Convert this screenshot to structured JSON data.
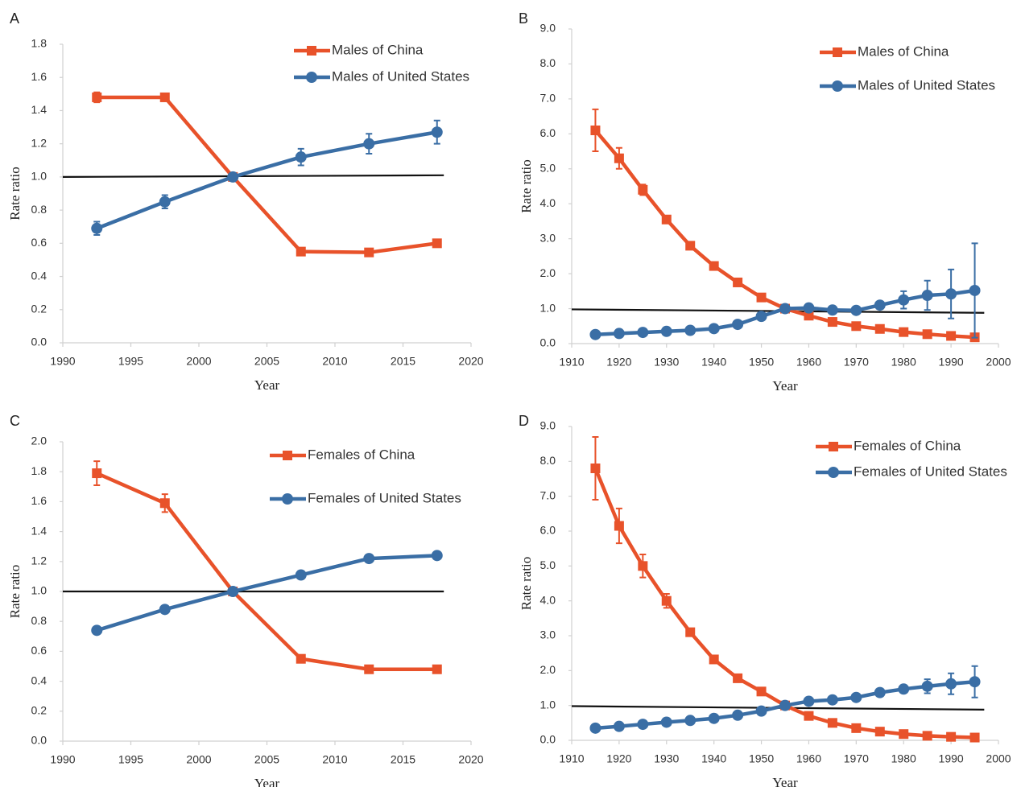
{
  "chart_data": [
    {
      "type": "line",
      "label": "A",
      "xlabel": "Year",
      "ylabel": "Rate ratio",
      "legend": "upper right",
      "grid": false,
      "x": [
        1992.5,
        1997.5,
        2002.5,
        2007.5,
        2012.5,
        2017.5
      ],
      "xlim": [
        1990,
        2020
      ],
      "xticks": [
        1990,
        1995,
        2000,
        2005,
        2010,
        2015,
        2020
      ],
      "ylim": [
        0,
        1.8
      ],
      "yticks": [
        {
          "value": 0,
          "label": "0.0"
        },
        0.2,
        0.4,
        0.6,
        0.8,
        {
          "value": 1,
          "label": "1.0"
        },
        1.2,
        1.4,
        1.6,
        1.8
      ],
      "reference_line": {
        "x": [
          1990,
          2018
        ],
        "y": [
          1.0,
          1.01
        ]
      },
      "series": [
        {
          "name": "Males of China",
          "color": "#e8522a",
          "marker": "square",
          "values": [
            1.48,
            1.48,
            1.0,
            0.55,
            0.545,
            0.6
          ],
          "error": [
            0.03,
            0.02,
            0.01,
            0.01,
            0.01,
            0.01
          ]
        },
        {
          "name": "Males of United States",
          "color": "#3a6ea5",
          "marker": "circle",
          "values": [
            0.69,
            0.85,
            1.0,
            1.12,
            1.2,
            1.27
          ],
          "error": [
            0.04,
            0.04,
            0.01,
            0.05,
            0.06,
            0.07
          ]
        }
      ]
    },
    {
      "type": "line",
      "label": "B",
      "xlabel": "Year",
      "ylabel": "Rate ratio",
      "legend": "upper right",
      "grid": false,
      "x": [
        1915,
        1920,
        1925,
        1930,
        1935,
        1940,
        1945,
        1950,
        1955,
        1960,
        1965,
        1970,
        1975,
        1980,
        1985,
        1990,
        1995
      ],
      "xlim": [
        1910,
        2000
      ],
      "xticks": [
        1910,
        1920,
        1930,
        1940,
        1950,
        1960,
        1970,
        1980,
        1990,
        2000
      ],
      "ylim": [
        0,
        9
      ],
      "yticks": [
        {
          "value": 0,
          "label": "0.0"
        },
        {
          "value": 1,
          "label": "1.0"
        },
        {
          "value": 2,
          "label": "2.0"
        },
        {
          "value": 3,
          "label": "3.0"
        },
        {
          "value": 4,
          "label": "4.0"
        },
        {
          "value": 5,
          "label": "5.0"
        },
        {
          "value": 6,
          "label": "6.0"
        },
        {
          "value": 7,
          "label": "7.0"
        },
        {
          "value": 8,
          "label": "8.0"
        },
        {
          "value": 9,
          "label": "9.0"
        }
      ],
      "reference_line": {
        "x": [
          1910,
          1997
        ],
        "y": [
          0.98,
          0.88
        ]
      },
      "series": [
        {
          "name": "Males of China",
          "color": "#e8522a",
          "marker": "square",
          "values": [
            6.1,
            5.3,
            4.4,
            3.55,
            2.8,
            2.22,
            1.75,
            1.32,
            1.0,
            0.8,
            0.62,
            0.5,
            0.42,
            0.33,
            0.27,
            0.22,
            0.18
          ],
          "error": [
            0.6,
            0.3,
            0.15,
            0.08,
            0.05,
            0.04,
            0.03,
            0.03,
            0.02,
            0.02,
            0.02,
            0.02,
            0.02,
            0.02,
            0.02,
            0.02,
            0.02
          ]
        },
        {
          "name": "Males of United States",
          "color": "#3a6ea5",
          "marker": "circle",
          "values": [
            0.26,
            0.29,
            0.32,
            0.35,
            0.38,
            0.43,
            0.55,
            0.78,
            1.0,
            1.02,
            0.96,
            0.95,
            1.1,
            1.25,
            1.38,
            1.42,
            1.52
          ],
          "error": [
            0.02,
            0.02,
            0.02,
            0.02,
            0.02,
            0.02,
            0.02,
            0.02,
            0.02,
            0.02,
            0.02,
            0.03,
            0.1,
            0.25,
            0.42,
            0.7,
            1.35
          ]
        }
      ]
    },
    {
      "type": "line",
      "label": "C",
      "xlabel": "Year",
      "ylabel": "Rate ratio",
      "legend": "upper right",
      "grid": false,
      "x": [
        1992.5,
        1997.5,
        2002.5,
        2007.5,
        2012.5,
        2017.5
      ],
      "xlim": [
        1990,
        2020
      ],
      "xticks": [
        1990,
        1995,
        2000,
        2005,
        2010,
        2015,
        2020
      ],
      "ylim": [
        0,
        2
      ],
      "yticks": [
        {
          "value": 0,
          "label": "0.0"
        },
        0.2,
        0.4,
        0.6,
        0.8,
        {
          "value": 1,
          "label": "1.0"
        },
        1.2,
        1.4,
        1.6,
        1.8,
        {
          "value": 2,
          "label": "2.0"
        }
      ],
      "reference_line": {
        "x": [
          1990,
          2018
        ],
        "y": [
          1.0,
          1.0
        ]
      },
      "series": [
        {
          "name": "Females of China",
          "color": "#e8522a",
          "marker": "square",
          "values": [
            1.79,
            1.59,
            1.0,
            0.55,
            0.48,
            0.48
          ],
          "error": [
            0.08,
            0.06,
            0.01,
            0.01,
            0.01,
            0.01
          ]
        },
        {
          "name": "Females of United States",
          "color": "#3a6ea5",
          "marker": "circle",
          "values": [
            0.74,
            0.88,
            1.0,
            1.11,
            1.22,
            1.24
          ],
          "error": [
            0.01,
            0.01,
            0.01,
            0.01,
            0.01,
            0.02
          ]
        }
      ]
    },
    {
      "type": "line",
      "label": "D",
      "xlabel": "Year",
      "ylabel": "Rate ratio",
      "legend": "upper right",
      "grid": false,
      "x": [
        1915,
        1920,
        1925,
        1930,
        1935,
        1940,
        1945,
        1950,
        1955,
        1960,
        1965,
        1970,
        1975,
        1980,
        1985,
        1990,
        1995
      ],
      "xlim": [
        1910,
        2000
      ],
      "xticks": [
        1910,
        1920,
        1930,
        1940,
        1950,
        1960,
        1970,
        1980,
        1990,
        2000
      ],
      "ylim": [
        0,
        9
      ],
      "yticks": [
        {
          "value": 0,
          "label": "0.0"
        },
        {
          "value": 1,
          "label": "1.0"
        },
        {
          "value": 2,
          "label": "2.0"
        },
        {
          "value": 3,
          "label": "3.0"
        },
        {
          "value": 4,
          "label": "4.0"
        },
        {
          "value": 5,
          "label": "5.0"
        },
        {
          "value": 6,
          "label": "6.0"
        },
        {
          "value": 7,
          "label": "7.0"
        },
        {
          "value": 8,
          "label": "8.0"
        },
        {
          "value": 9,
          "label": "9.0"
        }
      ],
      "reference_line": {
        "x": [
          1910,
          1997
        ],
        "y": [
          0.98,
          0.88
        ]
      },
      "series": [
        {
          "name": "Females of China",
          "color": "#e8522a",
          "marker": "square",
          "values": [
            7.8,
            6.15,
            5.0,
            4.0,
            3.1,
            2.32,
            1.78,
            1.4,
            1.0,
            0.7,
            0.5,
            0.35,
            0.25,
            0.18,
            0.13,
            0.1,
            0.08
          ],
          "error": [
            0.9,
            0.5,
            0.33,
            0.2,
            0.1,
            0.05,
            0.04,
            0.03,
            0.02,
            0.02,
            0.02,
            0.02,
            0.02,
            0.02,
            0.02,
            0.02,
            0.02
          ]
        },
        {
          "name": "Females of United States",
          "color": "#3a6ea5",
          "marker": "circle",
          "values": [
            0.35,
            0.4,
            0.46,
            0.52,
            0.57,
            0.63,
            0.72,
            0.84,
            1.0,
            1.12,
            1.16,
            1.23,
            1.37,
            1.47,
            1.55,
            1.62,
            1.68
          ],
          "error": [
            0.02,
            0.02,
            0.02,
            0.02,
            0.02,
            0.02,
            0.02,
            0.02,
            0.02,
            0.02,
            0.03,
            0.04,
            0.05,
            0.1,
            0.2,
            0.3,
            0.45
          ]
        }
      ]
    }
  ]
}
